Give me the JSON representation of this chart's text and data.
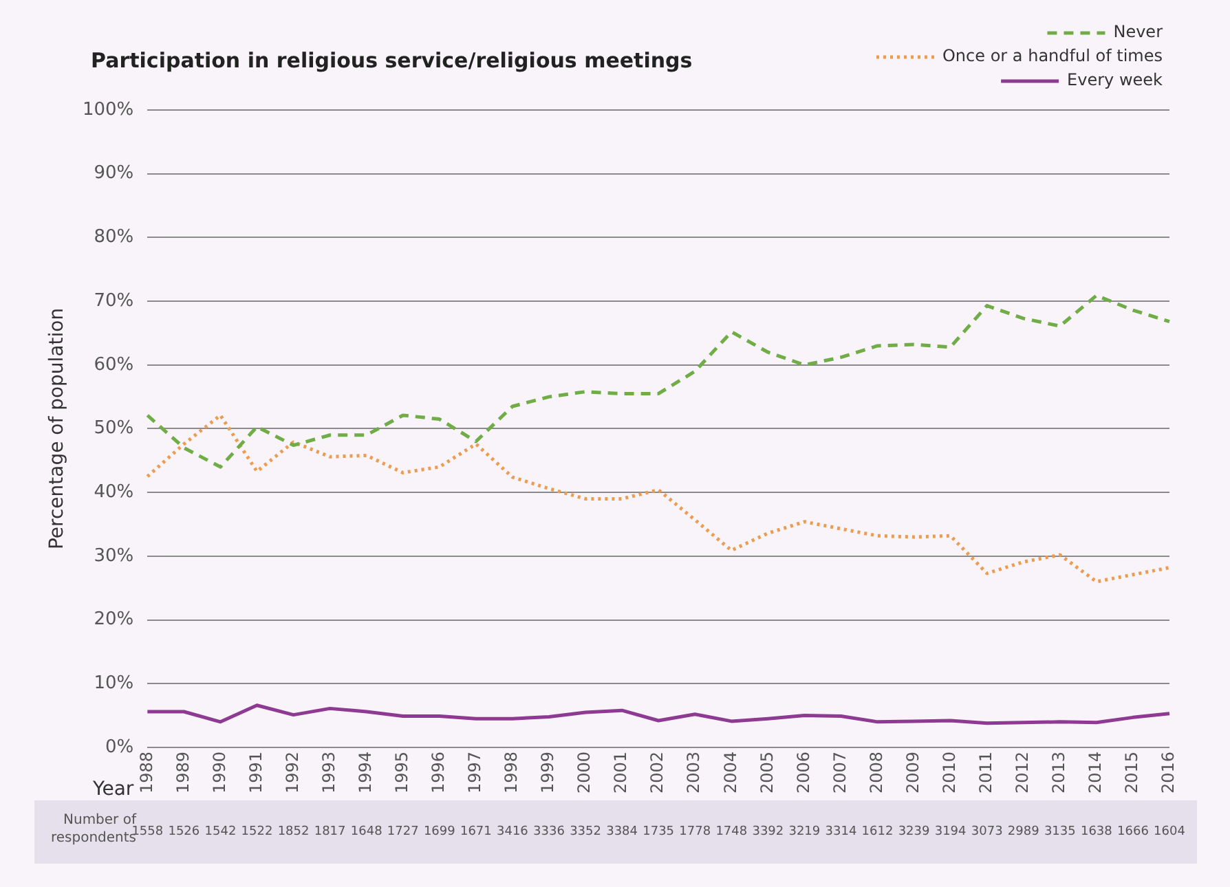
{
  "chart_data": {
    "type": "line",
    "title": "Participation in religious service/religious meetings",
    "xlabel": "Year",
    "ylabel": "Percentage of population",
    "categories": [
      "1988",
      "1989",
      "1990",
      "1991",
      "1992",
      "1993",
      "1994",
      "1995",
      "1996",
      "1997",
      "1998",
      "1999",
      "2000",
      "2001",
      "2002",
      "2003",
      "2004",
      "2005",
      "2006",
      "2007",
      "2008",
      "2009",
      "2010",
      "2011",
      "2012",
      "2013",
      "2014",
      "2015",
      "2016"
    ],
    "series": [
      {
        "name": "Never",
        "color": "#70ad47",
        "line_style": "dashed",
        "values": [
          52.1,
          47,
          44,
          50.3,
          47.4,
          49,
          49,
          52.1,
          51.5,
          48,
          53.5,
          55,
          55.8,
          55.5,
          55.5,
          59,
          65.2,
          62,
          60,
          61.2,
          63,
          63.2,
          62.8,
          69.3,
          67.3,
          66.1,
          70.9,
          68.6,
          66.8
        ]
      },
      {
        "name": "Once or a handful of times",
        "color": "#ed9b4f",
        "line_style": "dotted",
        "values": [
          42.5,
          47.6,
          52.1,
          43.3,
          47.9,
          45.6,
          45.8,
          43.1,
          44,
          47.6,
          42.4,
          40.6,
          39,
          39,
          40.4,
          35.7,
          30.9,
          33.6,
          35.4,
          34.3,
          33.2,
          33,
          33.2,
          27.3,
          29.1,
          30.2,
          26,
          27.1,
          28.2
        ]
      },
      {
        "name": "Every week",
        "color": "#8e3a92",
        "line_style": "solid",
        "values": [
          5.6,
          5.6,
          4,
          6.6,
          5.1,
          6.1,
          5.6,
          4.9,
          4.9,
          4.5,
          4.5,
          4.8,
          5.5,
          5.8,
          4.2,
          5.2,
          4.1,
          4.5,
          5,
          4.9,
          4,
          4.1,
          4.2,
          3.8,
          3.9,
          4,
          3.9,
          4.7,
          5.3
        ]
      }
    ],
    "ylim": [
      0,
      100
    ],
    "yticks": [
      {
        "value": 0,
        "label": "0%"
      },
      {
        "value": 10,
        "label": "10%"
      },
      {
        "value": 20,
        "label": "20%"
      },
      {
        "value": 30,
        "label": "30%"
      },
      {
        "value": 40,
        "label": "40%"
      },
      {
        "value": 50,
        "label": "50%"
      },
      {
        "value": 60,
        "label": "60%"
      },
      {
        "value": 70,
        "label": "70%"
      },
      {
        "value": 80,
        "label": "80%"
      },
      {
        "value": 90,
        "label": "90%"
      },
      {
        "value": 100,
        "label": "100%"
      }
    ],
    "grid": "y",
    "legend": "top right",
    "marker": "none",
    "annotations": [
      "Number of respondents",
      "1558",
      "1526",
      "1542",
      "1522",
      "1852",
      "1817",
      "1648",
      "1727",
      "1699",
      "1671",
      "3416",
      "3336",
      "3352",
      "3384",
      "1735",
      "1778",
      "1748",
      "3392",
      "3219",
      "3314",
      "1612",
      "3239",
      "3194",
      "3073",
      "2989",
      "3135",
      "1638",
      "1666",
      "1604"
    ]
  }
}
